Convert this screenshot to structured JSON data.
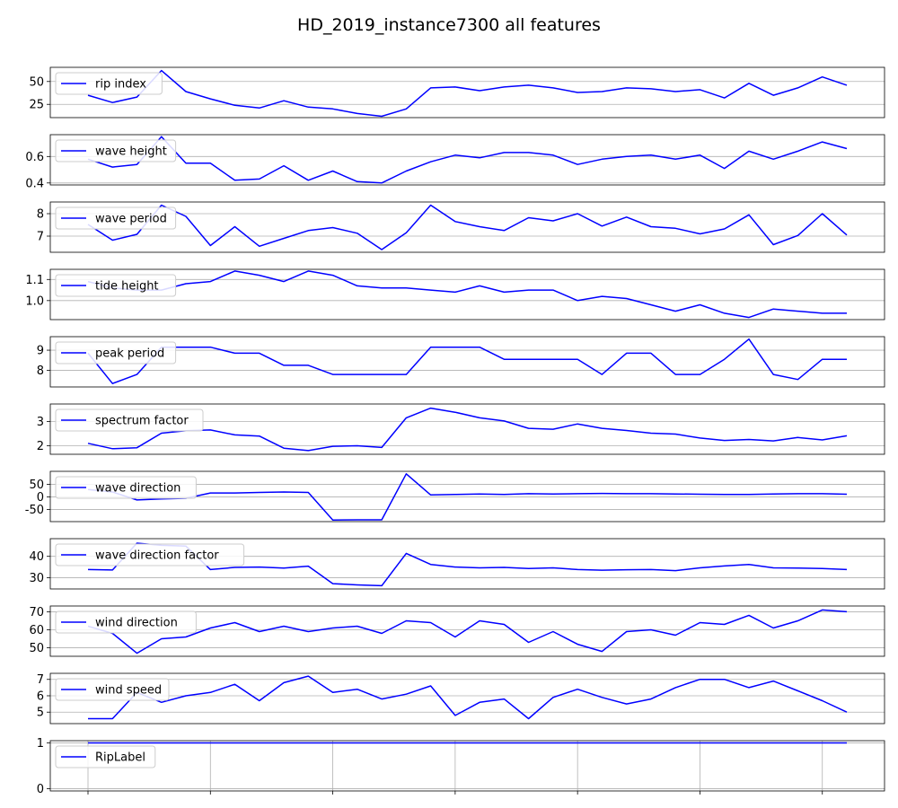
{
  "title": "HD_2019_instance7300 all features",
  "chart_data": {
    "type": "line",
    "title": "HD_2019_instance7300 all features",
    "x_count": 32,
    "x_ticks_count": 7,
    "grid": true,
    "legend_placement": "upper-left",
    "line_color": "#0000ff",
    "panels": [
      {
        "name": "rip index",
        "yticks": [
          25,
          50
        ],
        "ylim": [
          10.5,
          65.5
        ],
        "values": [
          35,
          27,
          33,
          62,
          39,
          31,
          24,
          21,
          29,
          22,
          20,
          15,
          12,
          20,
          43,
          44,
          40,
          44,
          46,
          43,
          38,
          39,
          43,
          42,
          39,
          41,
          32,
          48,
          35,
          43,
          55,
          46
        ]
      },
      {
        "name": "wave height",
        "yticks": [
          0.4,
          0.6
        ],
        "ylim": [
          0.385,
          0.765
        ],
        "values": [
          0.58,
          0.52,
          0.54,
          0.75,
          0.55,
          0.55,
          0.42,
          0.43,
          0.53,
          0.42,
          0.49,
          0.41,
          0.4,
          0.49,
          0.56,
          0.61,
          0.59,
          0.63,
          0.63,
          0.61,
          0.54,
          0.58,
          0.6,
          0.61,
          0.58,
          0.61,
          0.51,
          0.64,
          0.58,
          0.64,
          0.71,
          0.66
        ]
      },
      {
        "name": "wave period",
        "yticks": [
          7,
          8
        ],
        "ylim": [
          6.28,
          8.52
        ],
        "values": [
          7.52,
          6.82,
          7.08,
          8.38,
          7.88,
          6.58,
          7.42,
          6.55,
          6.9,
          7.25,
          7.38,
          7.13,
          6.4,
          7.15,
          8.38,
          7.65,
          7.42,
          7.25,
          7.82,
          7.68,
          8.0,
          7.45,
          7.85,
          7.42,
          7.35,
          7.1,
          7.32,
          7.95,
          6.62,
          7.03,
          8.0,
          7.05
        ]
      },
      {
        "name": "tide height",
        "yticks": [
          1.0,
          1.1
        ],
        "ylim": [
          0.91,
          1.148
        ],
        "values": [
          1.09,
          1.06,
          1.05,
          1.05,
          1.08,
          1.09,
          1.14,
          1.12,
          1.09,
          1.14,
          1.12,
          1.07,
          1.06,
          1.06,
          1.05,
          1.04,
          1.07,
          1.04,
          1.05,
          1.05,
          1.0,
          1.02,
          1.01,
          0.98,
          0.95,
          0.98,
          0.94,
          0.92,
          0.96,
          0.95,
          0.94,
          0.94
        ]
      },
      {
        "name": "peak period",
        "yticks": [
          8,
          9
        ],
        "ylim": [
          7.18,
          9.67
        ],
        "values": [
          8.85,
          7.35,
          7.8,
          9.15,
          9.15,
          9.15,
          8.85,
          8.85,
          8.25,
          8.25,
          7.8,
          7.8,
          7.8,
          7.8,
          9.15,
          9.15,
          9.15,
          8.55,
          8.55,
          8.55,
          8.55,
          7.8,
          8.85,
          8.85,
          7.8,
          7.8,
          8.55,
          9.55,
          7.8,
          7.55,
          8.55,
          8.55
        ]
      },
      {
        "name": "spectrum factor",
        "yticks": [
          2,
          3
        ],
        "ylim": [
          1.65,
          3.72
        ],
        "values": [
          2.1,
          1.88,
          1.92,
          2.52,
          2.62,
          2.65,
          2.45,
          2.4,
          1.9,
          1.8,
          1.98,
          2.0,
          1.93,
          3.15,
          3.55,
          3.38,
          3.15,
          3.02,
          2.72,
          2.68,
          2.9,
          2.72,
          2.63,
          2.52,
          2.48,
          2.32,
          2.22,
          2.26,
          2.2,
          2.34,
          2.24,
          2.41
        ]
      },
      {
        "name": "wave direction",
        "yticks": [
          -50,
          0,
          50
        ],
        "ylim": [
          -98,
          102
        ],
        "values": [
          30,
          20,
          -12,
          -8,
          -5,
          16,
          16,
          18,
          20,
          18,
          -92,
          -91,
          -91,
          92,
          8,
          10,
          12,
          10,
          13,
          12,
          13,
          14,
          13,
          13,
          12,
          11,
          10,
          10,
          12,
          13,
          13,
          11
        ]
      },
      {
        "name": "wave direction factor",
        "yticks": [
          30,
          40
        ],
        "ylim": [
          24.7,
          48.3
        ],
        "values": [
          33.8,
          33.6,
          46.2,
          45.2,
          44.8,
          33.8,
          34.8,
          35.0,
          34.5,
          35.4,
          27.2,
          26.6,
          26.2,
          41.4,
          36.2,
          35.0,
          34.6,
          34.8,
          34.3,
          34.6,
          33.8,
          33.5,
          33.7,
          33.8,
          33.3,
          34.6,
          35.5,
          36.2,
          34.6,
          34.5,
          34.3,
          33.8
        ]
      },
      {
        "name": "wind direction",
        "yticks": [
          50,
          60,
          70
        ],
        "ylim": [
          45.3,
          73.2
        ],
        "values": [
          62,
          58,
          47,
          55,
          56,
          61,
          64,
          59,
          62,
          59,
          61,
          62,
          58,
          65,
          64,
          56,
          65,
          63,
          53,
          59,
          52,
          48,
          59,
          60,
          57,
          64,
          63,
          68,
          61,
          65,
          71,
          70
        ]
      },
      {
        "name": "wind speed",
        "yticks": [
          5,
          6,
          7
        ],
        "ylim": [
          4.3,
          7.37
        ],
        "values": [
          4.6,
          4.6,
          6.2,
          5.6,
          6.0,
          6.2,
          6.7,
          5.7,
          6.8,
          7.2,
          6.2,
          6.4,
          5.8,
          6.1,
          6.6,
          4.8,
          5.6,
          5.8,
          4.6,
          5.9,
          6.4,
          5.9,
          5.5,
          5.8,
          6.5,
          7.0,
          7.0,
          6.5,
          6.9,
          6.3,
          5.7,
          5.0
        ]
      },
      {
        "name": "RipLabel",
        "yticks": [
          0,
          1
        ],
        "ylim": [
          -0.05,
          1.05
        ],
        "values": [
          1,
          1,
          1,
          1,
          1,
          1,
          1,
          1,
          1,
          1,
          1,
          1,
          1,
          1,
          1,
          1,
          1,
          1,
          1,
          1,
          1,
          1,
          1,
          1,
          1,
          1,
          1,
          1,
          1,
          1,
          1,
          1
        ]
      }
    ]
  }
}
